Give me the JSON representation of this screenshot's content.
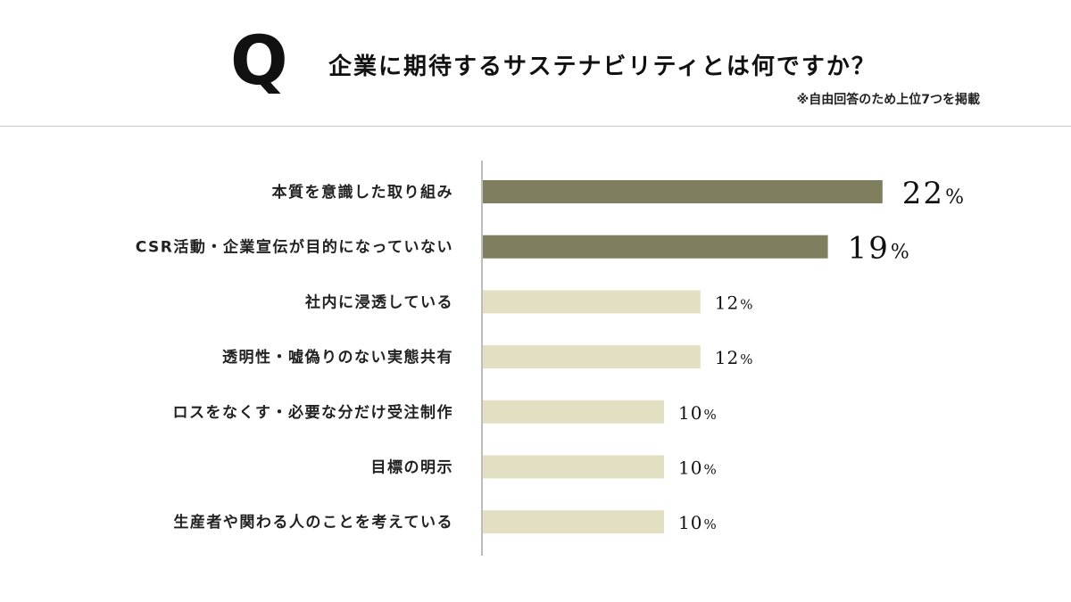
{
  "header": {
    "q_mark": "Q",
    "question": "企業に期待するサステナビリティとは何ですか？",
    "note": "※自由回答のため上位7つを掲載"
  },
  "chart_data": {
    "type": "bar",
    "orientation": "horizontal",
    "categories": [
      "本質を意識した取り組み",
      "CSR活動・企業宣伝が目的になっていない",
      "社内に浸透している",
      "透明性・嘘偽りのない実態共有",
      "ロスをなくす・必要な分だけ受注制作",
      "目標の明示",
      "生産者や関わる人のことを考えている"
    ],
    "values": [
      22,
      19,
      12,
      12,
      10,
      10,
      10
    ],
    "value_suffix": "%",
    "highlight_top": 2,
    "colors": {
      "highlight": "#7f7f5f",
      "normal": "#e2dfc2",
      "axis": "#bdbdbd"
    },
    "title": "",
    "xlabel": "",
    "ylabel": "",
    "grid": false,
    "legend": "none"
  }
}
